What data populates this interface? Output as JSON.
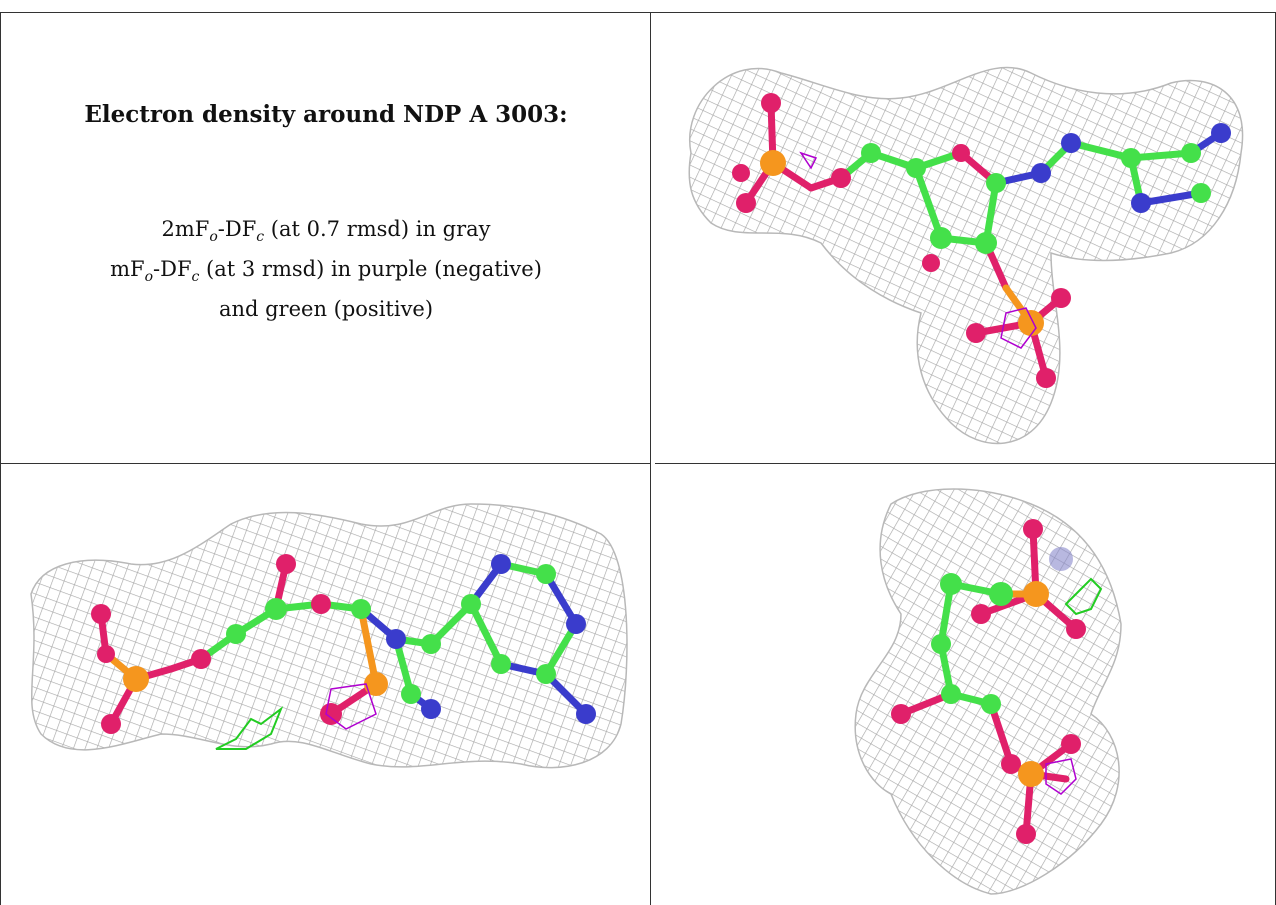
{
  "caption": {
    "title": "Electron density around NDP A 3003:",
    "line1": "2mFo-DFc (at 0.7 rmsd) in gray",
    "line2": "mFo-DFc (at 3 rmsd) in purple (negative)",
    "line3": "and green (positive)"
  },
  "colors": {
    "mesh": "#a8a8a8",
    "carbon": "#44e04a",
    "oxygen": "#e0206a",
    "phosphorus": "#f5961e",
    "nitrogen": "#3a3ccc",
    "negative_density": "#b000d0",
    "positive_density": "#22cc22"
  },
  "panels": [
    {
      "name": "view-1",
      "label": ""
    },
    {
      "name": "view-2",
      "label": ""
    },
    {
      "name": "view-3",
      "label": ""
    }
  ]
}
